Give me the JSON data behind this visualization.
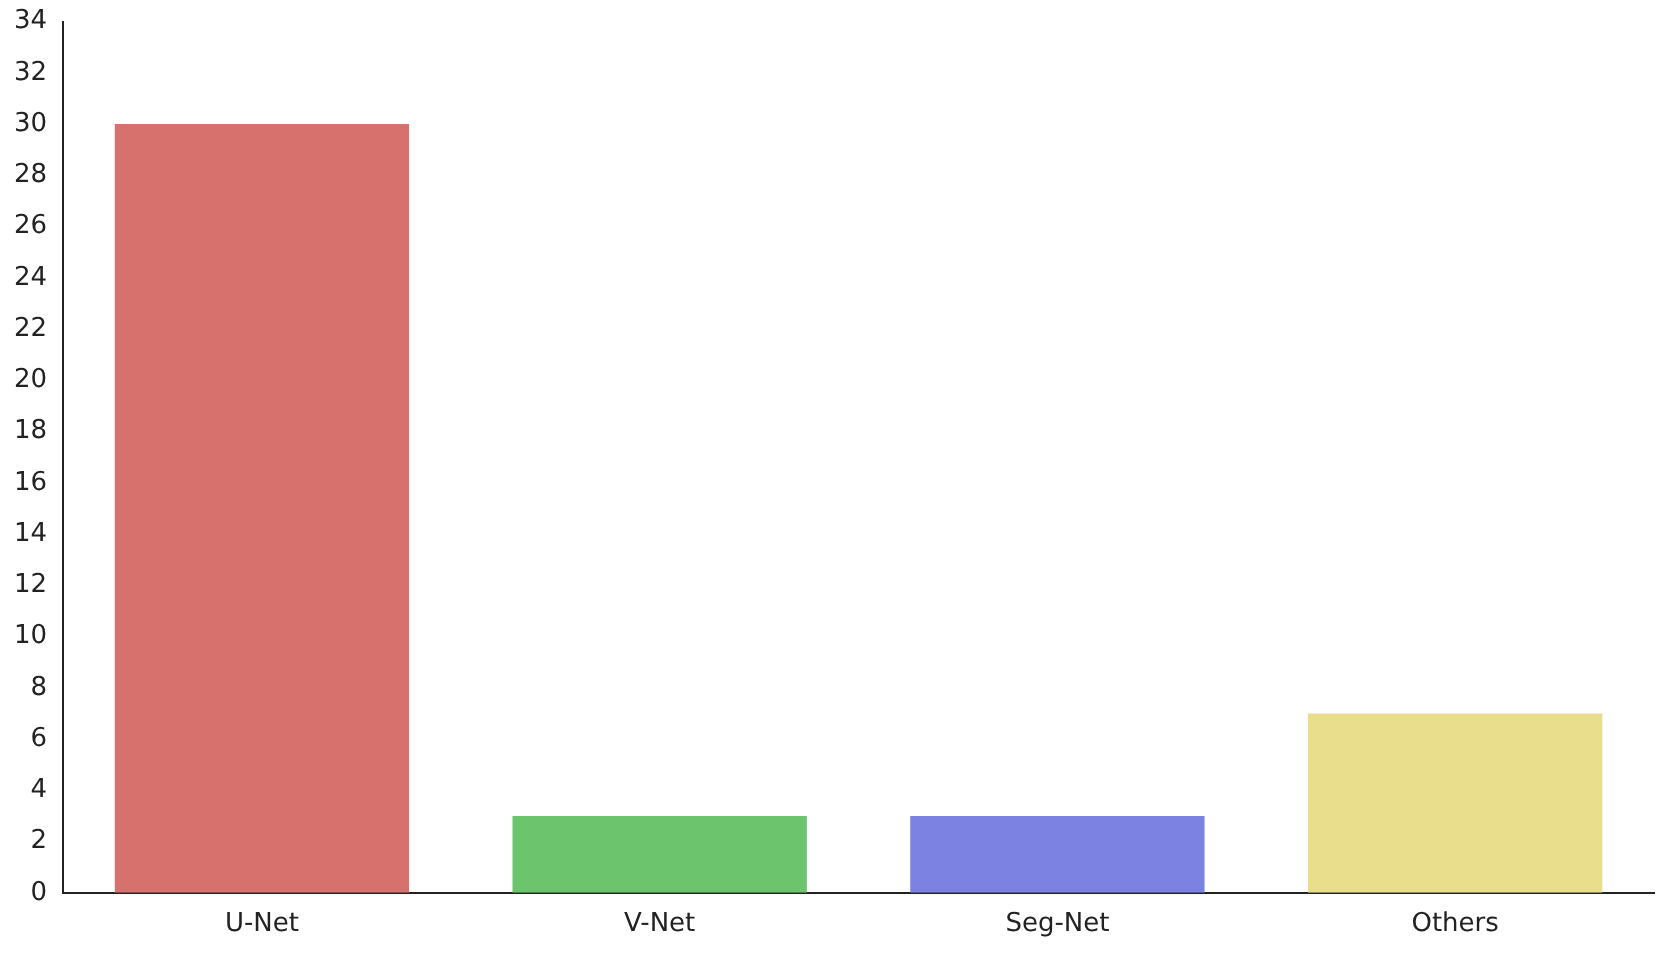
{
  "chart_data": {
    "type": "bar",
    "categories": [
      "U-Net",
      "V-Net",
      "Seg-Net",
      "Others"
    ],
    "values": [
      30,
      3,
      3,
      7
    ],
    "colors": [
      "#d7716e",
      "#6cc46c",
      "#7c82e2",
      "#e8de8c"
    ],
    "ylim": [
      0,
      34
    ],
    "yticks": [
      0,
      2,
      4,
      6,
      8,
      10,
      12,
      14,
      16,
      18,
      20,
      22,
      24,
      26,
      28,
      30,
      32,
      34
    ],
    "grid": false,
    "legend": false
  }
}
